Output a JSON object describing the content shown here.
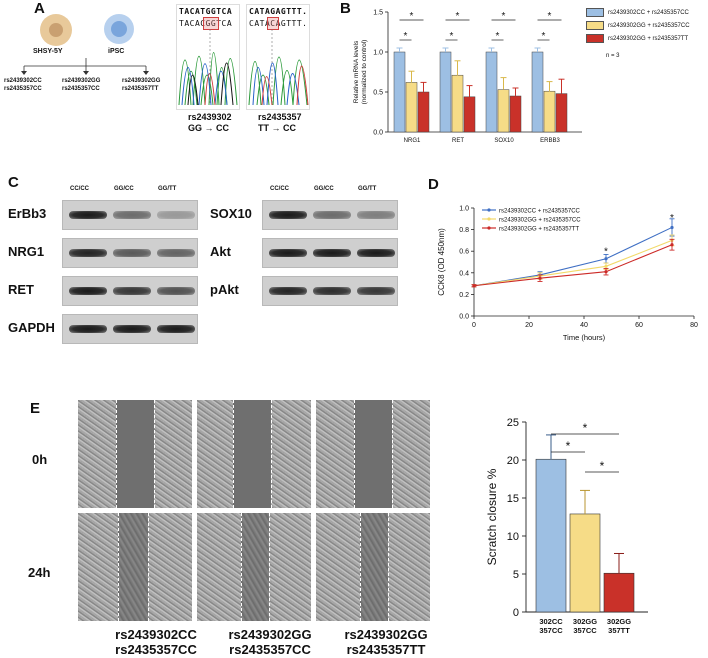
{
  "panelA": {
    "label": "A",
    "cell1": "SHSY-5Y",
    "cell2": "iPSC",
    "geno1a": "rs2439302CC",
    "geno1b": "rs2435357CC",
    "geno2a": "rs2439302GG",
    "geno2b": "rs2435357CC",
    "geno3a": "rs2439302GG",
    "geno3b": "rs2435357TT",
    "seq1_top": "TACATGGTCA",
    "seq1_bot": "TACACGGTCA",
    "seq2_top": "CATAGAGTTT.",
    "seq2_bot": "CATACAGTTT.",
    "edit1_a": "rs2439302",
    "edit1_b": "GG → CC",
    "edit2_a": "rs2435357",
    "edit2_b": "TT → CC"
  },
  "panelB": {
    "label": "B",
    "legend": [
      "rs2439302CC + rs2435357CC",
      "rs2439302GG + rs2435357CC",
      "rs2439302GG + rs2435357TT"
    ],
    "n_note": "n = 3"
  },
  "panelC": {
    "label": "C",
    "cols": [
      "CC/CC",
      "GG/CC",
      "GG/TT"
    ],
    "left_rows": [
      "ErBb3",
      "NRG1",
      "RET",
      "GAPDH"
    ],
    "right_rows": [
      "SOX10",
      "Akt",
      "pAkt"
    ]
  },
  "panelD": {
    "label": "D"
  },
  "panelE": {
    "label": "E",
    "time1": "0h",
    "time2": "24h",
    "group1a": "rs2439302CC",
    "group1b": "rs2435357CC",
    "group2a": "rs2439302GG",
    "group2b": "rs2435357CC",
    "group3a": "rs2439302GG",
    "group3b": "rs2435357TT"
  },
  "colors": {
    "cc_cc": "#9dbfe3",
    "gg_cc": "#f6dc87",
    "gg_tt": "#c93129",
    "line1": "#3f6fc4",
    "line2": "#f2d96a",
    "line3": "#cc2a27"
  },
  "chart_data": [
    {
      "type": "bar",
      "ylabel": "Relative mRNA levels (normalized to control)",
      "categories": [
        "NRG1",
        "RET",
        "SOX10",
        "ERBB3"
      ],
      "ylim": [
        0,
        1.5
      ],
      "yticks": [
        "0.0",
        "0.5",
        "1.0",
        "1.5"
      ],
      "series": [
        {
          "name": "rs2439302CC + rs2435357CC",
          "values": [
            1.0,
            1.0,
            1.0,
            1.0
          ],
          "errors": [
            0.05,
            0.05,
            0.05,
            0.05
          ]
        },
        {
          "name": "rs2439302GG + rs2435357CC",
          "values": [
            0.62,
            0.71,
            0.53,
            0.51
          ],
          "errors": [
            0.14,
            0.18,
            0.15,
            0.12
          ]
        },
        {
          "name": "rs2439302GG + rs2435357TT",
          "values": [
            0.5,
            0.44,
            0.45,
            0.48
          ],
          "errors": [
            0.12,
            0.14,
            0.1,
            0.18
          ]
        }
      ],
      "annotations": [
        "*"
      ]
    },
    {
      "type": "line",
      "xlabel": "Time (hours)",
      "ylabel": "CCK8 (OD 450nm)",
      "xlim": [
        0,
        80
      ],
      "ylim": [
        0,
        1.0
      ],
      "xticks": [
        "0",
        "20",
        "40",
        "60",
        "80"
      ],
      "yticks": [
        "0.0",
        "0.2",
        "0.4",
        "0.6",
        "0.8",
        "1.0"
      ],
      "x": [
        0,
        24,
        48,
        72
      ],
      "series": [
        {
          "name": "rs2439302CC + rs2435357CC",
          "values": [
            0.28,
            0.38,
            0.53,
            0.82
          ],
          "errors": [
            0.01,
            0.03,
            0.04,
            0.08
          ]
        },
        {
          "name": "rs2439302GG + rs2435357CC",
          "values": [
            0.28,
            0.37,
            0.46,
            0.7
          ],
          "errors": [
            0.01,
            0.03,
            0.03,
            0.05
          ]
        },
        {
          "name": "rs2439302GG + rs2435357TT",
          "values": [
            0.28,
            0.35,
            0.41,
            0.66
          ],
          "errors": [
            0.01,
            0.03,
            0.03,
            0.05
          ]
        }
      ],
      "annotations": [
        "*"
      ]
    },
    {
      "type": "bar",
      "ylabel": "Scratch closure %",
      "categories": [
        "302CC 357CC",
        "302GG 357CC",
        "302GG 357TT"
      ],
      "ylim": [
        0,
        25
      ],
      "yticks": [
        "0",
        "5",
        "10",
        "15",
        "20",
        "25"
      ],
      "values": [
        20.1,
        12.9,
        5.1
      ],
      "errors": [
        3.2,
        3.1,
        2.6
      ],
      "annotations": [
        "*"
      ]
    }
  ]
}
